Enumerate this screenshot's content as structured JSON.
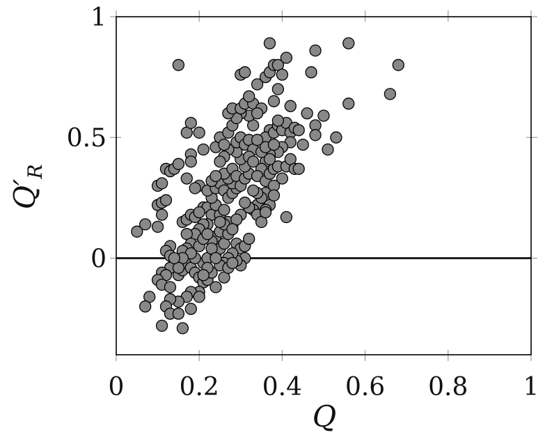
{
  "chart_data": {
    "type": "scatter",
    "title": "",
    "xlabel": "Q",
    "ylabel": {
      "main": "Q",
      "prime": "′",
      "sub": "R"
    },
    "xlim": [
      0,
      1
    ],
    "ylim": [
      -0.4,
      1
    ],
    "xticks": [
      0,
      0.2,
      0.4,
      0.6,
      0.8,
      1
    ],
    "xtick_labels": [
      "0",
      "0.2",
      "0.4",
      "0.6",
      "0.8",
      "1"
    ],
    "yticks": [
      0,
      0.5,
      1
    ],
    "ytick_labels": [
      "0",
      "0.5",
      "1"
    ],
    "reference_line": {
      "y": 0
    },
    "grid": false,
    "legend": "none",
    "marker_fill": "#888888",
    "marker_edge": "#000000",
    "points": [
      [
        0.05,
        0.11
      ],
      [
        0.07,
        0.14
      ],
      [
        0.1,
        0.22
      ],
      [
        0.11,
        0.23
      ],
      [
        0.1,
        0.13
      ],
      [
        0.12,
        0.24
      ],
      [
        0.12,
        0.37
      ],
      [
        0.13,
        0.36
      ],
      [
        0.14,
        0.37
      ],
      [
        0.1,
        0.3
      ],
      [
        0.11,
        0.31
      ],
      [
        0.11,
        0.18
      ],
      [
        0.15,
        0.8
      ],
      [
        0.15,
        0.39
      ],
      [
        0.17,
        0.52
      ],
      [
        0.18,
        0.56
      ],
      [
        0.2,
        0.52
      ],
      [
        0.18,
        0.43
      ],
      [
        0.21,
        0.45
      ],
      [
        0.18,
        0.4
      ],
      [
        0.17,
        0.33
      ],
      [
        0.2,
        0.3
      ],
      [
        0.19,
        0.29
      ],
      [
        0.16,
        0.15
      ],
      [
        0.17,
        0.16
      ],
      [
        0.18,
        0.18
      ],
      [
        0.19,
        0.17
      ],
      [
        0.21,
        0.21
      ],
      [
        0.22,
        0.21
      ],
      [
        0.2,
        0.19
      ],
      [
        0.23,
        0.18
      ],
      [
        0.22,
        0.14
      ],
      [
        0.21,
        0.14
      ],
      [
        0.2,
        0.12
      ],
      [
        0.19,
        0.1
      ],
      [
        0.17,
        0.1
      ],
      [
        0.18,
        0.06
      ],
      [
        0.17,
        0.04
      ],
      [
        0.16,
        0.03
      ],
      [
        0.13,
        0.05
      ],
      [
        0.12,
        0.03
      ],
      [
        0.13,
        0.01
      ],
      [
        0.14,
        -0.02
      ],
      [
        0.13,
        -0.04
      ],
      [
        0.11,
        -0.06
      ],
      [
        0.12,
        -0.07
      ],
      [
        0.1,
        -0.09
      ],
      [
        0.11,
        -0.11
      ],
      [
        0.13,
        -0.12
      ],
      [
        0.15,
        -0.07
      ],
      [
        0.16,
        -0.05
      ],
      [
        0.17,
        -0.02
      ],
      [
        0.18,
        -0.04
      ],
      [
        0.19,
        -0.06
      ],
      [
        0.2,
        -0.08
      ],
      [
        0.21,
        -0.1
      ],
      [
        0.22,
        -0.09
      ],
      [
        0.2,
        -0.14
      ],
      [
        0.18,
        -0.14
      ],
      [
        0.17,
        -0.16
      ],
      [
        0.15,
        -0.18
      ],
      [
        0.13,
        -0.17
      ],
      [
        0.12,
        -0.2
      ],
      [
        0.13,
        -0.23
      ],
      [
        0.15,
        -0.23
      ],
      [
        0.18,
        -0.21
      ],
      [
        0.08,
        -0.16
      ],
      [
        0.07,
        -0.2
      ],
      [
        0.11,
        -0.28
      ],
      [
        0.16,
        -0.29
      ],
      [
        0.2,
        -0.16
      ],
      [
        0.24,
        -0.12
      ],
      [
        0.26,
        -0.08
      ],
      [
        0.23,
        -0.06
      ],
      [
        0.21,
        -0.02
      ],
      [
        0.22,
        0.0
      ],
      [
        0.24,
        0.02
      ],
      [
        0.25,
        0.04
      ],
      [
        0.26,
        0.06
      ],
      [
        0.24,
        0.09
      ],
      [
        0.23,
        0.07
      ],
      [
        0.25,
        0.11
      ],
      [
        0.27,
        0.1
      ],
      [
        0.28,
        0.13
      ],
      [
        0.27,
        0.15
      ],
      [
        0.26,
        0.14
      ],
      [
        0.25,
        0.18
      ],
      [
        0.24,
        0.22
      ],
      [
        0.23,
        0.25
      ],
      [
        0.22,
        0.28
      ],
      [
        0.24,
        0.29
      ],
      [
        0.25,
        0.31
      ],
      [
        0.26,
        0.28
      ],
      [
        0.27,
        0.25
      ],
      [
        0.28,
        0.27
      ],
      [
        0.29,
        0.29
      ],
      [
        0.28,
        0.31
      ],
      [
        0.27,
        0.33
      ],
      [
        0.26,
        0.35
      ],
      [
        0.28,
        0.37
      ],
      [
        0.29,
        0.34
      ],
      [
        0.3,
        0.3
      ],
      [
        0.31,
        0.33
      ],
      [
        0.32,
        0.35
      ],
      [
        0.31,
        0.38
      ],
      [
        0.3,
        0.41
      ],
      [
        0.29,
        0.44
      ],
      [
        0.27,
        0.45
      ],
      [
        0.26,
        0.42
      ],
      [
        0.25,
        0.4
      ],
      [
        0.24,
        0.46
      ],
      [
        0.25,
        0.5
      ],
      [
        0.26,
        0.47
      ],
      [
        0.27,
        0.52
      ],
      [
        0.28,
        0.55
      ],
      [
        0.29,
        0.48
      ],
      [
        0.3,
        0.5
      ],
      [
        0.31,
        0.47
      ],
      [
        0.32,
        0.49
      ],
      [
        0.33,
        0.45
      ],
      [
        0.33,
        0.55
      ],
      [
        0.32,
        0.59
      ],
      [
        0.3,
        0.6
      ],
      [
        0.29,
        0.58
      ],
      [
        0.27,
        0.6
      ],
      [
        0.28,
        0.62
      ],
      [
        0.3,
        0.62
      ],
      [
        0.31,
        0.64
      ],
      [
        0.33,
        0.64
      ],
      [
        0.32,
        0.67
      ],
      [
        0.34,
        0.72
      ],
      [
        0.36,
        0.75
      ],
      [
        0.37,
        0.77
      ],
      [
        0.38,
        0.8
      ],
      [
        0.39,
        0.8
      ],
      [
        0.37,
        0.89
      ],
      [
        0.41,
        0.83
      ],
      [
        0.4,
        0.76
      ],
      [
        0.39,
        0.7
      ],
      [
        0.38,
        0.65
      ],
      [
        0.35,
        0.62
      ],
      [
        0.34,
        0.6
      ],
      [
        0.37,
        0.53
      ],
      [
        0.36,
        0.5
      ],
      [
        0.38,
        0.52
      ],
      [
        0.39,
        0.55
      ],
      [
        0.4,
        0.53
      ],
      [
        0.41,
        0.56
      ],
      [
        0.42,
        0.52
      ],
      [
        0.43,
        0.54
      ],
      [
        0.42,
        0.48
      ],
      [
        0.4,
        0.46
      ],
      [
        0.39,
        0.44
      ],
      [
        0.37,
        0.43
      ],
      [
        0.36,
        0.4
      ],
      [
        0.35,
        0.37
      ],
      [
        0.34,
        0.34
      ],
      [
        0.36,
        0.32
      ],
      [
        0.37,
        0.35
      ],
      [
        0.38,
        0.37
      ],
      [
        0.39,
        0.38
      ],
      [
        0.41,
        0.38
      ],
      [
        0.42,
        0.41
      ],
      [
        0.43,
        0.37
      ],
      [
        0.44,
        0.37
      ],
      [
        0.45,
        0.47
      ],
      [
        0.44,
        0.53
      ],
      [
        0.46,
        0.6
      ],
      [
        0.48,
        0.55
      ],
      [
        0.48,
        0.51
      ],
      [
        0.5,
        0.59
      ],
      [
        0.51,
        0.45
      ],
      [
        0.53,
        0.5
      ],
      [
        0.56,
        0.64
      ],
      [
        0.56,
        0.89
      ],
      [
        0.48,
        0.86
      ],
      [
        0.47,
        0.77
      ],
      [
        0.66,
        0.68
      ],
      [
        0.68,
        0.8
      ],
      [
        0.42,
        0.63
      ],
      [
        0.4,
        0.33
      ],
      [
        0.38,
        0.3
      ],
      [
        0.36,
        0.27
      ],
      [
        0.35,
        0.24
      ],
      [
        0.34,
        0.22
      ],
      [
        0.33,
        0.2
      ],
      [
        0.34,
        0.18
      ],
      [
        0.35,
        0.25
      ],
      [
        0.37,
        0.22
      ],
      [
        0.38,
        0.26
      ],
      [
        0.36,
        0.2
      ],
      [
        0.32,
        0.21
      ],
      [
        0.31,
        0.23
      ],
      [
        0.3,
        0.18
      ],
      [
        0.29,
        0.16
      ],
      [
        0.28,
        0.12
      ],
      [
        0.29,
        0.06
      ],
      [
        0.3,
        0.04
      ],
      [
        0.31,
        0.05
      ],
      [
        0.32,
        0.08
      ],
      [
        0.31,
        0.0
      ],
      [
        0.3,
        -0.03
      ],
      [
        0.29,
        -0.01
      ],
      [
        0.28,
        0.02
      ],
      [
        0.27,
        0.0
      ],
      [
        0.26,
        -0.02
      ],
      [
        0.25,
        -0.03
      ],
      [
        0.27,
        -0.04
      ],
      [
        0.28,
        -0.02
      ],
      [
        0.35,
        0.15
      ],
      [
        0.36,
        0.19
      ],
      [
        0.34,
        0.27
      ],
      [
        0.33,
        0.28
      ],
      [
        0.41,
        0.17
      ],
      [
        0.3,
        0.76
      ],
      [
        0.31,
        0.77
      ],
      [
        0.2,
        0.05
      ],
      [
        0.21,
        0.08
      ],
      [
        0.22,
        0.1
      ],
      [
        0.19,
        0.0
      ],
      [
        0.18,
        0.02
      ],
      [
        0.16,
        0.0
      ],
      [
        0.15,
        -0.04
      ],
      [
        0.14,
        0.0
      ],
      [
        0.23,
        0.04
      ],
      [
        0.24,
        0.0
      ],
      [
        0.22,
        -0.04
      ],
      [
        0.21,
        -0.07
      ],
      [
        0.25,
        0.15
      ],
      [
        0.26,
        0.2
      ],
      [
        0.23,
        0.32
      ],
      [
        0.24,
        0.34
      ],
      [
        0.32,
        0.42
      ],
      [
        0.33,
        0.4
      ],
      [
        0.35,
        0.44
      ],
      [
        0.36,
        0.46
      ],
      [
        0.37,
        0.41
      ],
      [
        0.38,
        0.47
      ],
      [
        0.39,
        0.57
      ],
      [
        0.34,
        0.49
      ]
    ]
  }
}
